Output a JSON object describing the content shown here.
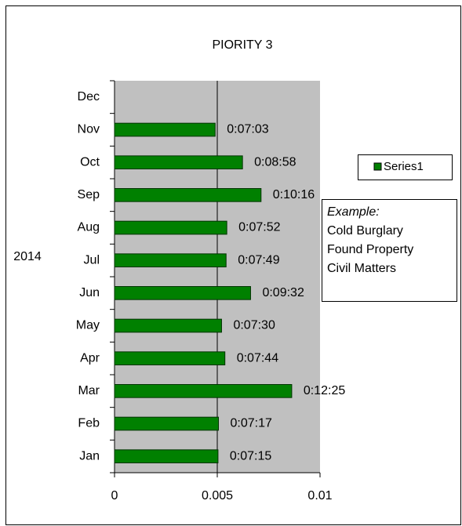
{
  "chart_data": {
    "type": "barh",
    "title": "PIORITY 3",
    "categories": [
      "Jan",
      "Feb",
      "Mar",
      "Apr",
      "May",
      "Jun",
      "Jul",
      "Aug",
      "Sep",
      "Oct",
      "Nov",
      "Dec"
    ],
    "category_group": "2014",
    "series": [
      {
        "name": "Series1",
        "color": "#008000",
        "values": [
          0.0050347,
          0.0050579,
          0.0086227,
          0.0053704,
          0.0052083,
          0.0066204,
          0.0054282,
          0.005463,
          0.0071296,
          0.0062269,
          0.0048958,
          null
        ],
        "value_labels": [
          "0:07:15",
          "0:07:17",
          "0:12:25",
          "0:07:44",
          "0:07:30",
          "0:09:32",
          "0:07:49",
          "0:07:52",
          "0:10:16",
          "0:08:58",
          "0:07:03",
          null
        ]
      }
    ],
    "xlim": [
      0,
      0.01
    ],
    "xticks": [
      0,
      0.005,
      0.01
    ],
    "grid": true,
    "legend": "right",
    "annotation": {
      "heading": "Example:",
      "lines": [
        "Cold Burglary",
        "Found Property",
        "Civil Matters"
      ]
    }
  }
}
